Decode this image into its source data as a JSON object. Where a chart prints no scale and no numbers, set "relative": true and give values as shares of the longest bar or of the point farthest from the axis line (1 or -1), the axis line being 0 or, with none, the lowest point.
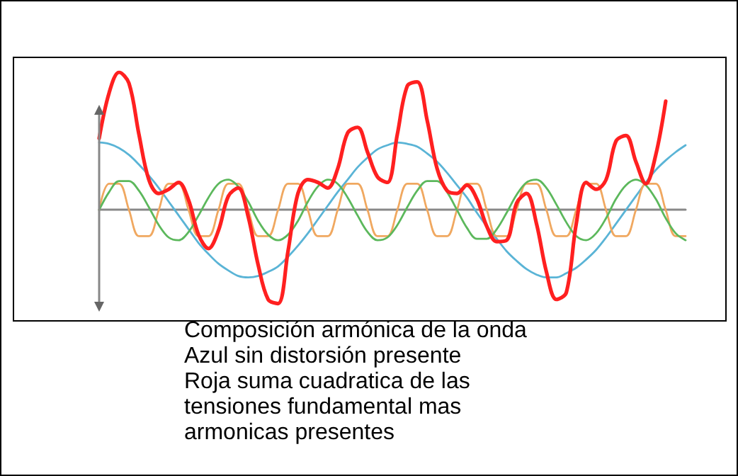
{
  "chart_data": {
    "type": "line",
    "relative": true,
    "grid": false,
    "marker": "none",
    "line_style": "solid",
    "categories": [
      null,
      null,
      null,
      null,
      null,
      null,
      null,
      null,
      null,
      null,
      null,
      null,
      null,
      null,
      null,
      null,
      null,
      null,
      null,
      null,
      null,
      null,
      null,
      null,
      null,
      null,
      null,
      null,
      null,
      null,
      null,
      null,
      null,
      null,
      null,
      null,
      null,
      null,
      null,
      null,
      null,
      null,
      null,
      null,
      null,
      null,
      null,
      null,
      null,
      null,
      null,
      null,
      null,
      null,
      null,
      null,
      null,
      null,
      null,
      null
    ],
    "series": [
      {
        "color": "#5ab4d6",
        "values": [
          0.49,
          0.48,
          0.45,
          0.4,
          0.33,
          0.25,
          0.16,
          0.06,
          -0.04,
          -0.14,
          -0.24,
          -0.32,
          -0.39,
          -0.44,
          -0.48,
          -0.49,
          -0.48,
          -0.45,
          -0.41,
          -0.34,
          -0.26,
          -0.17,
          -0.07,
          0.03,
          0.13,
          0.22,
          0.31,
          0.38,
          0.44,
          0.47,
          0.49,
          0.48,
          0.46,
          0.41,
          0.35,
          0.27,
          0.18,
          0.09,
          -0.02,
          -0.12,
          -0.21,
          -0.3,
          -0.37,
          -0.43,
          -0.47,
          -0.49,
          -0.49,
          -0.46,
          -0.42,
          -0.36,
          -0.29,
          -0.2,
          -0.1,
          0.0,
          0.1,
          0.2,
          0.29,
          0.36,
          0.42,
          0.47
        ]
      },
      {
        "color": "#f0a860",
        "values": [
          0,
          0.19,
          0.19,
          0,
          -0.19,
          -0.19,
          0,
          0.19,
          0.19,
          0,
          -0.19,
          -0.19,
          0,
          0.19,
          0.19,
          0,
          -0.19,
          -0.19,
          0,
          0.19,
          0.19,
          0,
          -0.19,
          -0.19,
          0,
          0.19,
          0.19,
          0,
          -0.19,
          -0.19,
          0,
          0.19,
          0.19,
          0,
          -0.19,
          -0.19,
          0,
          0.19,
          0.19,
          0,
          -0.19,
          -0.19,
          0,
          0.19,
          0.19,
          0,
          -0.19,
          -0.19,
          0,
          0.19,
          0.19,
          0,
          -0.19,
          -0.19,
          0,
          0.19,
          0.19,
          0,
          -0.19,
          -0.19
        ]
      },
      {
        "color": "#5cb85c",
        "values": [
          0,
          0.13,
          0.21,
          0.21,
          0.14,
          0.02,
          -0.11,
          -0.2,
          -0.22,
          -0.16,
          -0.04,
          0.09,
          0.19,
          0.22,
          0.17,
          0.06,
          -0.08,
          -0.18,
          -0.22,
          -0.18,
          -0.08,
          0.06,
          0.17,
          0.22,
          0.19,
          0.09,
          -0.04,
          -0.16,
          -0.22,
          -0.2,
          -0.11,
          0.02,
          0.14,
          0.21,
          0.21,
          0.13,
          0,
          -0.13,
          -0.21,
          -0.21,
          -0.14,
          -0.02,
          0.11,
          0.2,
          0.22,
          0.16,
          0.04,
          -0.09,
          -0.19,
          -0.22,
          -0.17,
          -0.06,
          0.08,
          0.18,
          0.22,
          0.18,
          0.08,
          -0.06,
          -0.17,
          -0.22
        ]
      },
      {
        "color": "#ff2020",
        "values": [
          0.52,
          0.85,
          1.0,
          0.92,
          0.55,
          0.22,
          0.12,
          0.15,
          0.2,
          0.07,
          -0.18,
          -0.28,
          -0.15,
          0.1,
          0.16,
          -0.05,
          -0.4,
          -0.65,
          -0.68,
          -0.3,
          0.12,
          0.22,
          0.2,
          0.16,
          0.3,
          0.56,
          0.6,
          0.42,
          0.24,
          0.2,
          0.55,
          0.9,
          0.93,
          0.65,
          0.3,
          0.14,
          0.12,
          0.18,
          0.08,
          -0.12,
          -0.23,
          -0.22,
          0.05,
          0.12,
          -0.1,
          -0.45,
          -0.65,
          -0.6,
          -0.1,
          0.2,
          0.15,
          0.22,
          0.5,
          0.54,
          0.35,
          0.19,
          0.4,
          0.79,
          null,
          null
        ]
      }
    ],
    "annotations": [
      "Composición armónica de la onda",
      "Azul sin distorsión presente",
      "Roja suma cuadratica de las tensiones fundamental mas armonicas presentes"
    ]
  }
}
